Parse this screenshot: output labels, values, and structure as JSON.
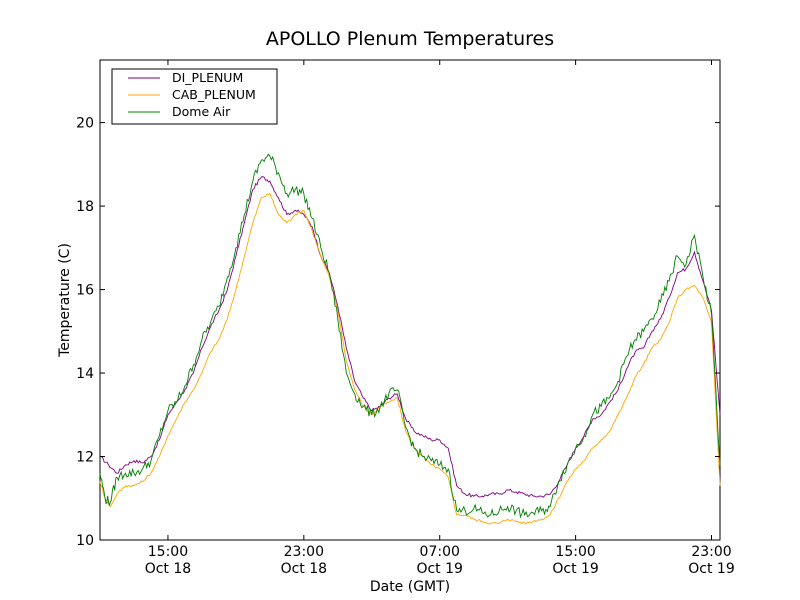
{
  "chart_data": {
    "type": "line",
    "title": "APOLLO Plenum Temperatures",
    "xlabel": "Date (GMT)",
    "ylabel": "Temperature (C)",
    "x_unit": "hours since Oct 18 00:00 GMT",
    "xlim": [
      11.0,
      47.5
    ],
    "ylim": [
      10,
      21.5
    ],
    "y_ticks": [
      10,
      12,
      14,
      16,
      18,
      20
    ],
    "x_ticks": [
      {
        "value": 15,
        "time": "15:00",
        "date": "Oct 18"
      },
      {
        "value": 23,
        "time": "23:00",
        "date": "Oct 18"
      },
      {
        "value": 31,
        "time": "07:00",
        "date": "Oct 19"
      },
      {
        "value": 39,
        "time": "15:00",
        "date": "Oct 19"
      },
      {
        "value": 47,
        "time": "23:00",
        "date": "Oct 19"
      }
    ],
    "legend_position": "top-left",
    "series": [
      {
        "name": "DI_PLENUM",
        "color": "#800080",
        "points": [
          [
            11.0,
            12.0
          ],
          [
            11.5,
            11.8
          ],
          [
            12.0,
            11.6
          ],
          [
            12.5,
            11.8
          ],
          [
            13.0,
            11.9
          ],
          [
            13.5,
            11.85
          ],
          [
            14.0,
            12.0
          ],
          [
            14.5,
            12.4
          ],
          [
            15.0,
            13.0
          ],
          [
            15.5,
            13.3
          ],
          [
            16.0,
            13.6
          ],
          [
            16.5,
            14.0
          ],
          [
            17.0,
            14.6
          ],
          [
            17.5,
            15.1
          ],
          [
            18.0,
            15.5
          ],
          [
            18.5,
            16.0
          ],
          [
            19.0,
            16.8
          ],
          [
            19.5,
            17.6
          ],
          [
            20.0,
            18.4
          ],
          [
            20.5,
            18.7
          ],
          [
            21.0,
            18.6
          ],
          [
            21.5,
            18.2
          ],
          [
            22.0,
            17.8
          ],
          [
            22.5,
            17.9
          ],
          [
            23.0,
            17.8
          ],
          [
            23.5,
            17.5
          ],
          [
            24.0,
            16.8
          ],
          [
            24.5,
            16.4
          ],
          [
            25.0,
            15.6
          ],
          [
            25.5,
            14.6
          ],
          [
            26.0,
            13.8
          ],
          [
            26.5,
            13.4
          ],
          [
            27.0,
            13.1
          ],
          [
            27.5,
            13.2
          ],
          [
            28.0,
            13.4
          ],
          [
            28.5,
            13.5
          ],
          [
            29.0,
            12.9
          ],
          [
            29.5,
            12.6
          ],
          [
            30.0,
            12.5
          ],
          [
            30.5,
            12.4
          ],
          [
            31.0,
            12.4
          ],
          [
            31.5,
            12.2
          ],
          [
            32.0,
            11.3
          ],
          [
            32.5,
            11.1
          ],
          [
            33.0,
            11.05
          ],
          [
            33.5,
            11.05
          ],
          [
            34.0,
            11.1
          ],
          [
            34.5,
            11.1
          ],
          [
            35.0,
            11.2
          ],
          [
            35.5,
            11.15
          ],
          [
            36.0,
            11.1
          ],
          [
            36.5,
            11.05
          ],
          [
            37.0,
            11.05
          ],
          [
            37.5,
            11.1
          ],
          [
            38.0,
            11.4
          ],
          [
            38.5,
            11.8
          ],
          [
            39.0,
            12.2
          ],
          [
            39.5,
            12.5
          ],
          [
            40.0,
            12.9
          ],
          [
            40.5,
            13.0
          ],
          [
            41.0,
            13.3
          ],
          [
            41.5,
            13.6
          ],
          [
            42.0,
            14.1
          ],
          [
            42.5,
            14.5
          ],
          [
            43.0,
            14.6
          ],
          [
            43.5,
            15.0
          ],
          [
            44.0,
            15.3
          ],
          [
            44.5,
            15.8
          ],
          [
            45.0,
            16.4
          ],
          [
            45.5,
            16.5
          ],
          [
            46.0,
            16.9
          ],
          [
            46.5,
            16.2
          ],
          [
            47.0,
            15.5
          ],
          [
            47.5,
            13.0
          ]
        ]
      },
      {
        "name": "CAB_PLENUM",
        "color": "#FFA500",
        "points": [
          [
            11.0,
            11.4
          ],
          [
            11.3,
            11.0
          ],
          [
            11.6,
            10.8
          ],
          [
            12.0,
            11.1
          ],
          [
            12.5,
            11.3
          ],
          [
            13.0,
            11.3
          ],
          [
            13.5,
            11.4
          ],
          [
            14.0,
            11.6
          ],
          [
            14.5,
            12.0
          ],
          [
            15.0,
            12.5
          ],
          [
            15.5,
            12.9
          ],
          [
            16.0,
            13.3
          ],
          [
            16.5,
            13.6
          ],
          [
            17.0,
            14.0
          ],
          [
            17.5,
            14.5
          ],
          [
            18.0,
            14.8
          ],
          [
            18.5,
            15.3
          ],
          [
            19.0,
            16.0
          ],
          [
            19.5,
            16.8
          ],
          [
            20.0,
            17.6
          ],
          [
            20.5,
            18.2
          ],
          [
            21.0,
            18.3
          ],
          [
            21.5,
            17.8
          ],
          [
            22.0,
            17.6
          ],
          [
            22.5,
            17.8
          ],
          [
            23.0,
            17.9
          ],
          [
            23.5,
            17.4
          ],
          [
            24.0,
            16.8
          ],
          [
            24.5,
            16.3
          ],
          [
            25.0,
            15.5
          ],
          [
            25.5,
            14.3
          ],
          [
            26.0,
            13.6
          ],
          [
            26.5,
            13.2
          ],
          [
            27.0,
            13.0
          ],
          [
            27.5,
            13.2
          ],
          [
            28.0,
            13.3
          ],
          [
            28.5,
            13.4
          ],
          [
            29.0,
            12.6
          ],
          [
            29.5,
            12.2
          ],
          [
            30.0,
            12.0
          ],
          [
            30.5,
            11.8
          ],
          [
            31.0,
            11.7
          ],
          [
            31.5,
            11.5
          ],
          [
            32.0,
            10.6
          ],
          [
            32.5,
            10.6
          ],
          [
            33.0,
            10.5
          ],
          [
            33.5,
            10.45
          ],
          [
            34.0,
            10.4
          ],
          [
            34.5,
            10.4
          ],
          [
            35.0,
            10.5
          ],
          [
            35.5,
            10.45
          ],
          [
            36.0,
            10.4
          ],
          [
            36.5,
            10.45
          ],
          [
            37.0,
            10.5
          ],
          [
            37.5,
            10.6
          ],
          [
            38.0,
            11.0
          ],
          [
            38.5,
            11.4
          ],
          [
            39.0,
            11.7
          ],
          [
            39.5,
            11.9
          ],
          [
            40.0,
            12.2
          ],
          [
            40.5,
            12.4
          ],
          [
            41.0,
            12.6
          ],
          [
            41.5,
            13.0
          ],
          [
            42.0,
            13.4
          ],
          [
            42.5,
            13.9
          ],
          [
            43.0,
            14.2
          ],
          [
            43.5,
            14.6
          ],
          [
            44.0,
            14.8
          ],
          [
            44.5,
            15.2
          ],
          [
            45.0,
            15.8
          ],
          [
            45.5,
            16.0
          ],
          [
            46.0,
            16.1
          ],
          [
            46.5,
            15.8
          ],
          [
            47.0,
            15.2
          ],
          [
            47.5,
            11.3
          ]
        ]
      },
      {
        "name": "Dome Air",
        "color": "#008000",
        "points": [
          [
            11.0,
            11.6
          ],
          [
            11.3,
            11.0
          ],
          [
            11.6,
            10.9
          ],
          [
            12.0,
            11.5
          ],
          [
            12.5,
            11.6
          ],
          [
            13.0,
            11.6
          ],
          [
            13.5,
            11.7
          ],
          [
            14.0,
            11.9
          ],
          [
            14.5,
            12.5
          ],
          [
            15.0,
            13.1
          ],
          [
            15.5,
            13.3
          ],
          [
            16.0,
            13.7
          ],
          [
            16.5,
            14.2
          ],
          [
            17.0,
            14.8
          ],
          [
            17.5,
            15.2
          ],
          [
            18.0,
            15.6
          ],
          [
            18.5,
            16.3
          ],
          [
            19.0,
            17.0
          ],
          [
            19.5,
            17.8
          ],
          [
            20.0,
            18.6
          ],
          [
            20.5,
            19.1
          ],
          [
            21.0,
            19.2
          ],
          [
            21.5,
            18.8
          ],
          [
            22.0,
            18.3
          ],
          [
            22.5,
            18.4
          ],
          [
            23.0,
            18.3
          ],
          [
            23.5,
            17.7
          ],
          [
            24.0,
            17.0
          ],
          [
            24.5,
            16.4
          ],
          [
            25.0,
            15.3
          ],
          [
            25.5,
            14.0
          ],
          [
            26.0,
            13.5
          ],
          [
            26.5,
            13.2
          ],
          [
            27.0,
            13.0
          ],
          [
            27.5,
            13.2
          ],
          [
            28.0,
            13.5
          ],
          [
            28.5,
            13.6
          ],
          [
            29.0,
            12.7
          ],
          [
            29.5,
            12.2
          ],
          [
            30.0,
            12.0
          ],
          [
            30.5,
            11.9
          ],
          [
            31.0,
            11.8
          ],
          [
            31.5,
            11.7
          ],
          [
            32.0,
            10.7
          ],
          [
            32.5,
            10.7
          ],
          [
            33.0,
            10.75
          ],
          [
            33.5,
            10.65
          ],
          [
            34.0,
            10.6
          ],
          [
            34.5,
            10.7
          ],
          [
            35.0,
            10.8
          ],
          [
            35.5,
            10.7
          ],
          [
            36.0,
            10.6
          ],
          [
            36.5,
            10.65
          ],
          [
            37.0,
            10.7
          ],
          [
            37.5,
            10.8
          ],
          [
            38.0,
            11.4
          ],
          [
            38.5,
            11.8
          ],
          [
            39.0,
            12.2
          ],
          [
            39.5,
            12.5
          ],
          [
            40.0,
            13.0
          ],
          [
            40.5,
            13.2
          ],
          [
            41.0,
            13.4
          ],
          [
            41.5,
            13.8
          ],
          [
            42.0,
            14.4
          ],
          [
            42.5,
            14.8
          ],
          [
            43.0,
            15.0
          ],
          [
            43.5,
            15.3
          ],
          [
            44.0,
            15.7
          ],
          [
            44.5,
            16.2
          ],
          [
            45.0,
            16.8
          ],
          [
            45.5,
            16.6
          ],
          [
            46.0,
            17.3
          ],
          [
            46.5,
            16.3
          ],
          [
            47.0,
            15.4
          ],
          [
            47.5,
            11.8
          ]
        ]
      }
    ]
  }
}
